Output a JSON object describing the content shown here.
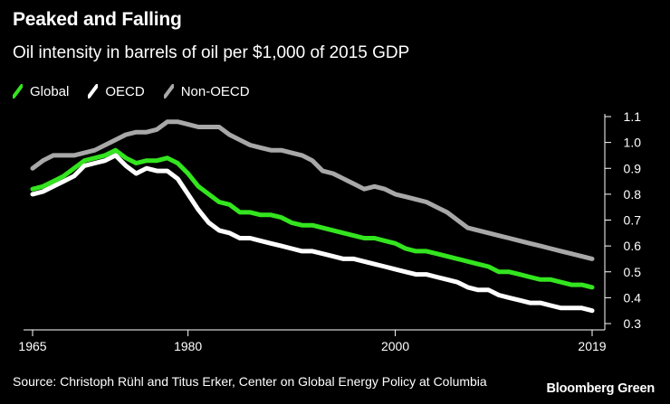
{
  "header": {
    "title": "Peaked and Falling",
    "subtitle": "Oil intensity in barrels of oil per $1,000 of 2015 GDP"
  },
  "footer": {
    "source": "Source: Christoph Rühl and Titus Erker, Center on Global Energy Policy at Columbia",
    "brand": "Bloomberg Green"
  },
  "colors": {
    "background": "#000000",
    "global": "#33e51e",
    "oecd": "#ffffff",
    "non_oecd": "#a8a8a8",
    "axis": "#ffffff"
  },
  "chart_data": {
    "type": "line",
    "title": "Peaked and Falling",
    "subtitle": "Oil intensity in barrels of oil per $1,000 of 2015 GDP",
    "xlabel": "",
    "ylabel": "",
    "xlim": [
      1965,
      2019
    ],
    "ylim": [
      0.3,
      1.1
    ],
    "x_ticks": [
      {
        "value": 1965,
        "label": "1965"
      },
      {
        "value": 1980,
        "label": "1980"
      },
      {
        "value": 2000,
        "label": "2000"
      },
      {
        "value": 2019,
        "label": "2019"
      }
    ],
    "y_ticks": [
      {
        "value": 1.1,
        "label": "1.1"
      },
      {
        "value": 1.0,
        "label": "1.0"
      },
      {
        "value": 0.9,
        "label": "0.9"
      },
      {
        "value": 0.8,
        "label": "0.8"
      },
      {
        "value": 0.7,
        "label": "0.7"
      },
      {
        "value": 0.6,
        "label": "0.6"
      },
      {
        "value": 0.5,
        "label": "0.5"
      },
      {
        "value": 0.4,
        "label": "0.4"
      },
      {
        "value": 0.3,
        "label": "0.3"
      }
    ],
    "grid": false,
    "legend_position": "top-left",
    "x": [
      1965,
      1966,
      1967,
      1968,
      1969,
      1970,
      1971,
      1972,
      1973,
      1974,
      1975,
      1976,
      1977,
      1978,
      1979,
      1980,
      1981,
      1982,
      1983,
      1984,
      1985,
      1986,
      1987,
      1988,
      1989,
      1990,
      1991,
      1992,
      1993,
      1994,
      1995,
      1996,
      1997,
      1998,
      1999,
      2000,
      2001,
      2002,
      2003,
      2004,
      2005,
      2006,
      2007,
      2008,
      2009,
      2010,
      2011,
      2012,
      2013,
      2014,
      2015,
      2016,
      2017,
      2018,
      2019
    ],
    "series": [
      {
        "name": "Global",
        "color_key": "global",
        "values": [
          0.82,
          0.83,
          0.85,
          0.87,
          0.9,
          0.93,
          0.94,
          0.95,
          0.97,
          0.94,
          0.92,
          0.93,
          0.93,
          0.94,
          0.92,
          0.88,
          0.83,
          0.8,
          0.77,
          0.76,
          0.73,
          0.73,
          0.72,
          0.72,
          0.71,
          0.69,
          0.68,
          0.68,
          0.67,
          0.66,
          0.65,
          0.64,
          0.63,
          0.63,
          0.62,
          0.61,
          0.59,
          0.58,
          0.58,
          0.57,
          0.56,
          0.55,
          0.54,
          0.53,
          0.52,
          0.5,
          0.5,
          0.49,
          0.48,
          0.47,
          0.47,
          0.46,
          0.45,
          0.45,
          0.44
        ]
      },
      {
        "name": "OECD",
        "color_key": "oecd",
        "values": [
          0.8,
          0.81,
          0.83,
          0.85,
          0.87,
          0.91,
          0.92,
          0.93,
          0.95,
          0.91,
          0.88,
          0.9,
          0.89,
          0.89,
          0.86,
          0.8,
          0.74,
          0.69,
          0.66,
          0.65,
          0.63,
          0.63,
          0.62,
          0.61,
          0.6,
          0.59,
          0.58,
          0.58,
          0.57,
          0.56,
          0.55,
          0.55,
          0.54,
          0.53,
          0.52,
          0.51,
          0.5,
          0.49,
          0.49,
          0.48,
          0.47,
          0.46,
          0.44,
          0.43,
          0.43,
          0.41,
          0.4,
          0.39,
          0.38,
          0.38,
          0.37,
          0.36,
          0.36,
          0.36,
          0.35
        ]
      },
      {
        "name": "Non-OECD",
        "color_key": "non_oecd",
        "values": [
          0.9,
          0.93,
          0.95,
          0.95,
          0.95,
          0.96,
          0.97,
          0.99,
          1.01,
          1.03,
          1.04,
          1.04,
          1.05,
          1.08,
          1.08,
          1.07,
          1.06,
          1.06,
          1.06,
          1.03,
          1.01,
          0.99,
          0.98,
          0.97,
          0.97,
          0.96,
          0.95,
          0.93,
          0.89,
          0.88,
          0.86,
          0.84,
          0.82,
          0.83,
          0.82,
          0.8,
          0.79,
          0.78,
          0.77,
          0.75,
          0.73,
          0.7,
          0.67,
          0.66,
          0.65,
          0.64,
          0.63,
          0.62,
          0.61,
          0.6,
          0.59,
          0.58,
          0.57,
          0.56,
          0.55
        ]
      }
    ]
  }
}
